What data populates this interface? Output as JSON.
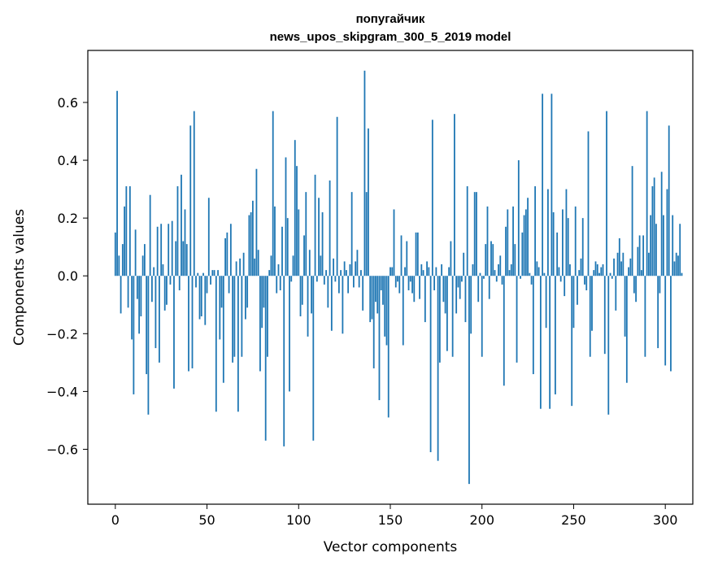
{
  "chart_data": {
    "type": "bar",
    "title_line1": "попугайчик",
    "title_line2": "news_upos_skipgram_300_5_2019 model",
    "xlabel": "Vector components",
    "ylabel": "Components values",
    "xlim": [
      -15,
      315
    ],
    "ylim": [
      -0.79,
      0.78
    ],
    "xticks": [
      0,
      50,
      100,
      150,
      200,
      250,
      300
    ],
    "yticks": [
      -0.6,
      -0.4,
      -0.2,
      0.0,
      0.2,
      0.4,
      0.6
    ],
    "ytick_labels": [
      "−0.6",
      "−0.4",
      "−0.2",
      "0.0",
      "0.2",
      "0.4",
      "0.6"
    ],
    "grid": false,
    "legend": "none",
    "bar_color": "#1f77b4",
    "values": [
      0.15,
      0.64,
      0.07,
      -0.13,
      0.11,
      0.24,
      0.31,
      -0.11,
      0.31,
      -0.22,
      -0.41,
      0.16,
      -0.08,
      -0.2,
      -0.14,
      0.07,
      0.11,
      -0.34,
      -0.48,
      0.28,
      -0.09,
      0.03,
      -0.25,
      0.17,
      -0.3,
      0.18,
      0.04,
      -0.12,
      -0.1,
      0.18,
      -0.03,
      0.19,
      -0.39,
      0.12,
      0.31,
      -0.05,
      0.35,
      0.12,
      0.23,
      0.11,
      -0.33,
      0.52,
      -0.32,
      0.57,
      -0.04,
      0.01,
      -0.15,
      -0.14,
      0.01,
      -0.17,
      -0.06,
      0.27,
      -0.03,
      0.02,
      0.02,
      -0.47,
      0.02,
      -0.22,
      -0.11,
      -0.37,
      0.13,
      0.15,
      -0.06,
      0.18,
      -0.3,
      -0.28,
      0.05,
      -0.47,
      0.06,
      -0.28,
      0.08,
      -0.15,
      -0.11,
      0.21,
      0.22,
      0.26,
      0.06,
      0.37,
      0.09,
      -0.33,
      -0.18,
      -0.11,
      -0.57,
      -0.28,
      0.02,
      0.07,
      0.57,
      0.24,
      -0.06,
      0.04,
      -0.05,
      0.17,
      -0.59,
      0.41,
      0.2,
      -0.4,
      -0.02,
      0.07,
      0.47,
      0.38,
      0.23,
      -0.14,
      -0.1,
      0.14,
      0.29,
      -0.21,
      0.09,
      -0.13,
      -0.57,
      0.35,
      -0.02,
      0.27,
      0.07,
      0.22,
      -0.03,
      0.02,
      -0.11,
      0.33,
      -0.19,
      0.06,
      -0.02,
      0.55,
      -0.06,
      0.02,
      -0.2,
      0.05,
      0.02,
      -0.06,
      0.04,
      0.29,
      -0.04,
      0.05,
      0.09,
      -0.04,
      0.02,
      -0.12,
      0.71,
      0.29,
      0.51,
      -0.16,
      -0.15,
      -0.32,
      -0.09,
      -0.13,
      -0.43,
      -0.05,
      -0.1,
      -0.21,
      -0.24,
      -0.49,
      0.03,
      0.03,
      0.23,
      -0.04,
      -0.02,
      -0.06,
      0.14,
      -0.24,
      0.03,
      0.12,
      -0.05,
      -0.02,
      -0.06,
      -0.09,
      0.15,
      0.15,
      -0.08,
      0.04,
      0.02,
      -0.16,
      0.05,
      0.03,
      -0.61,
      0.54,
      -0.05,
      0.03,
      -0.64,
      -0.3,
      0.04,
      -0.09,
      -0.13,
      -0.26,
      0.03,
      0.12,
      -0.28,
      0.56,
      -0.13,
      -0.04,
      -0.08,
      -0.02,
      0.08,
      -0.16,
      0.31,
      -0.72,
      -0.2,
      0.04,
      0.29,
      0.29,
      -0.09,
      0.01,
      -0.28,
      -0.01,
      0.11,
      0.24,
      -0.08,
      0.12,
      0.11,
      0.02,
      -0.02,
      0.04,
      0.07,
      -0.03,
      -0.38,
      0.17,
      0.23,
      0.02,
      0.04,
      0.24,
      0.11,
      -0.3,
      0.4,
      -0.01,
      0.15,
      0.21,
      0.23,
      0.27,
      0.01,
      -0.03,
      -0.34,
      0.31,
      0.05,
      0.03,
      -0.46,
      0.63,
      0.01,
      -0.18,
      0.3,
      -0.46,
      0.63,
      0.22,
      -0.41,
      0.15,
      0.03,
      -0.02,
      0.23,
      -0.07,
      0.3,
      0.2,
      0.04,
      -0.45,
      -0.18,
      0.24,
      -0.1,
      0.02,
      0.06,
      0.2,
      -0.03,
      -0.05,
      0.5,
      -0.28,
      -0.19,
      0.02,
      0.05,
      0.04,
      0.01,
      0.03,
      0.04,
      -0.27,
      0.57,
      -0.48,
      0.01,
      -0.01,
      0.06,
      -0.12,
      0.08,
      0.13,
      0.05,
      0.08,
      -0.21,
      -0.37,
      0.03,
      0.06,
      0.38,
      -0.06,
      -0.09,
      0.1,
      0.14,
      0.02,
      0.14,
      -0.28,
      0.57,
      0.08,
      0.21,
      0.31,
      0.34,
      0.18,
      -0.25,
      -0.06,
      0.36,
      0.21,
      -0.31,
      0.3,
      0.52,
      -0.33,
      0.21,
      0.05,
      0.08,
      0.07,
      0.18,
      0.01
    ]
  }
}
